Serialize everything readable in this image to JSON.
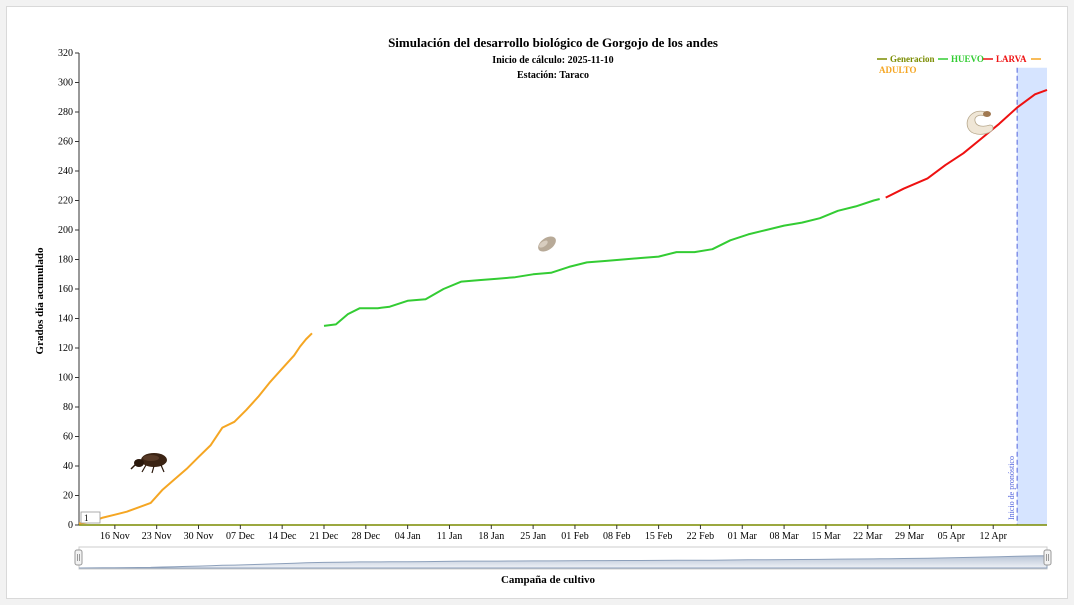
{
  "chart_data": {
    "type": "line",
    "title": "Simulación del desarrollo biológico de Gorgojo de los andes",
    "subtitle_lines": [
      "Inicio de cálculo: 2025-11-10",
      "Estación: Taraco"
    ],
    "xlabel": "Campaña de cultivo",
    "ylabel": "Grados día acumulado",
    "x_start": "2025-11-10",
    "x_end": "2026-04-21",
    "ylim": [
      0,
      320
    ],
    "yticks": [
      0,
      20,
      40,
      60,
      80,
      100,
      120,
      140,
      160,
      180,
      200,
      220,
      240,
      260,
      280,
      300,
      320
    ],
    "xticks": [
      {
        "date": "2025-11-16",
        "label": "16 Nov"
      },
      {
        "date": "2025-11-23",
        "label": "23 Nov"
      },
      {
        "date": "2025-11-30",
        "label": "30 Nov"
      },
      {
        "date": "2025-12-07",
        "label": "07 Dec"
      },
      {
        "date": "2025-12-14",
        "label": "14 Dec"
      },
      {
        "date": "2025-12-21",
        "label": "21 Dec"
      },
      {
        "date": "2025-12-28",
        "label": "28 Dec"
      },
      {
        "date": "2026-01-04",
        "label": "04 Jan"
      },
      {
        "date": "2026-01-11",
        "label": "11 Jan"
      },
      {
        "date": "2026-01-18",
        "label": "18 Jan"
      },
      {
        "date": "2026-01-25",
        "label": "25 Jan"
      },
      {
        "date": "2026-02-01",
        "label": "01 Feb"
      },
      {
        "date": "2026-02-08",
        "label": "08 Feb"
      },
      {
        "date": "2026-02-15",
        "label": "15 Feb"
      },
      {
        "date": "2026-02-22",
        "label": "22 Feb"
      },
      {
        "date": "2026-03-01",
        "label": "01 Mar"
      },
      {
        "date": "2026-03-08",
        "label": "08 Mar"
      },
      {
        "date": "2026-03-15",
        "label": "15 Mar"
      },
      {
        "date": "2026-03-22",
        "label": "22 Mar"
      },
      {
        "date": "2026-03-29",
        "label": "29 Mar"
      },
      {
        "date": "2026-04-05",
        "label": "05 Apr"
      },
      {
        "date": "2026-04-12",
        "label": "12 Apr"
      }
    ],
    "legend": {
      "placement": "top-right",
      "entries": [
        {
          "label": "Generacion",
          "color": "#7a8c00"
        },
        {
          "label": "HUEVO",
          "color": "#33cc33"
        },
        {
          "label": "LARVA",
          "color": "#ee1111"
        },
        {
          "label": "ADULTO",
          "color": "#f5a623"
        }
      ]
    },
    "generation_marker": "1",
    "forecast": {
      "start": "2026-04-16",
      "label": "Inicio de pronóstico",
      "color": "#d6e4ff"
    },
    "series": [
      {
        "name": "ADULTO",
        "color": "#f5a623",
        "points": [
          [
            "2025-11-10",
            1
          ],
          [
            "2025-11-12",
            2
          ],
          [
            "2025-11-14",
            5
          ],
          [
            "2025-11-16",
            7
          ],
          [
            "2025-11-18",
            9
          ],
          [
            "2025-11-20",
            12
          ],
          [
            "2025-11-22",
            15
          ],
          [
            "2025-11-24",
            24
          ],
          [
            "2025-11-26",
            31
          ],
          [
            "2025-11-28",
            38
          ],
          [
            "2025-11-30",
            46
          ],
          [
            "2025-12-02",
            54
          ],
          [
            "2025-12-04",
            66
          ],
          [
            "2025-12-06",
            70
          ],
          [
            "2025-12-08",
            78
          ],
          [
            "2025-12-10",
            87
          ],
          [
            "2025-12-12",
            97
          ],
          [
            "2025-12-14",
            106
          ],
          [
            "2025-12-16",
            115
          ],
          [
            "2025-12-17",
            121
          ],
          [
            "2025-12-18",
            126
          ],
          [
            "2025-12-19",
            130
          ]
        ]
      },
      {
        "name": "HUEVO",
        "color": "#33cc33",
        "points": [
          [
            "2025-12-21",
            135
          ],
          [
            "2025-12-23",
            136
          ],
          [
            "2025-12-25",
            143
          ],
          [
            "2025-12-27",
            147
          ],
          [
            "2025-12-30",
            147
          ],
          [
            "2026-01-01",
            148
          ],
          [
            "2026-01-04",
            152
          ],
          [
            "2026-01-07",
            153
          ],
          [
            "2026-01-10",
            160
          ],
          [
            "2026-01-13",
            165
          ],
          [
            "2026-01-16",
            166
          ],
          [
            "2026-01-19",
            167
          ],
          [
            "2026-01-22",
            168
          ],
          [
            "2026-01-25",
            170
          ],
          [
            "2026-01-28",
            171
          ],
          [
            "2026-01-31",
            175
          ],
          [
            "2026-02-03",
            178
          ],
          [
            "2026-02-06",
            179
          ],
          [
            "2026-02-09",
            180
          ],
          [
            "2026-02-12",
            181
          ],
          [
            "2026-02-15",
            182
          ],
          [
            "2026-02-18",
            185
          ],
          [
            "2026-02-21",
            185
          ],
          [
            "2026-02-24",
            187
          ],
          [
            "2026-02-27",
            193
          ],
          [
            "2026-03-02",
            197
          ],
          [
            "2026-03-05",
            200
          ],
          [
            "2026-03-08",
            203
          ],
          [
            "2026-03-11",
            205
          ],
          [
            "2026-03-14",
            208
          ],
          [
            "2026-03-17",
            213
          ],
          [
            "2026-03-20",
            216
          ],
          [
            "2026-03-23",
            220
          ],
          [
            "2026-03-24",
            221
          ]
        ]
      },
      {
        "name": "LARVA",
        "color": "#ee1111",
        "points": [
          [
            "2026-03-25",
            222
          ],
          [
            "2026-03-28",
            228
          ],
          [
            "2026-04-01",
            235
          ],
          [
            "2026-04-04",
            244
          ],
          [
            "2026-04-07",
            252
          ],
          [
            "2026-04-10",
            262
          ],
          [
            "2026-04-13",
            272
          ],
          [
            "2026-04-16",
            283
          ],
          [
            "2026-04-19",
            292
          ],
          [
            "2026-04-21",
            295
          ]
        ]
      }
    ],
    "icons": [
      "weevil-adult-icon",
      "egg-icon",
      "larva-icon"
    ]
  }
}
